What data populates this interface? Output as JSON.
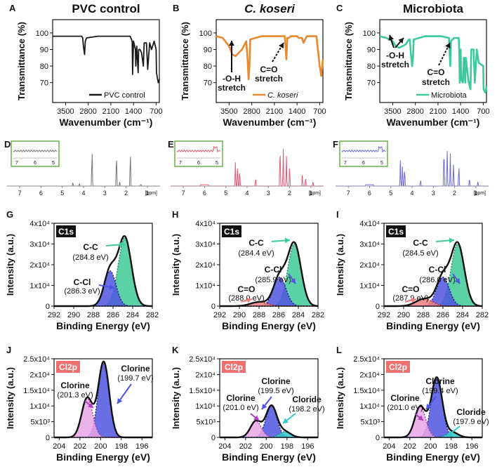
{
  "figure": {
    "colors": {
      "black": "#1a1a1a",
      "orange": "#e8892f",
      "teal": "#3cc9a0",
      "nmr_gray": "#777777",
      "nmr_red": "#e05a74",
      "nmr_blue": "#6a6ad8",
      "inset_green": "#6ab04c",
      "xps_green": "#3ec996",
      "xps_blue": "#4f55e0",
      "xps_red": "#f08080",
      "xps_pink": "#e9a6e6",
      "xps_cyan": "#33c8c8",
      "xps_label_black": "#111111",
      "xps_label_red": "#f07070"
    }
  },
  "ftir": {
    "ylabel": "Transmittance (%)",
    "xlabel": "Wavenumber (cm⁻¹)",
    "xticks": [
      "3500",
      "2800",
      "2100",
      "1400",
      "700"
    ],
    "yticks": [
      "70",
      "80",
      "90",
      "100"
    ],
    "panels": [
      {
        "letter": "A",
        "title": "PVC control",
        "legend": "PVC control",
        "color": "black",
        "annotations": []
      },
      {
        "letter": "B",
        "title": "C. koseri",
        "legend": "C. koseri",
        "color": "orange",
        "annotations": [
          "-O-H stretch",
          "C=O stretch"
        ]
      },
      {
        "letter": "C",
        "title": "Microbiota",
        "legend": "Microbiota",
        "color": "teal",
        "annotations": [
          "-O-H stretch",
          "C=O stretch"
        ]
      }
    ]
  },
  "nmr": {
    "unit": "[ppm]",
    "ticks": [
      "7",
      "6",
      "5",
      "4",
      "3",
      "2",
      "1"
    ],
    "inset_ticks": [
      "7",
      "6",
      "5"
    ],
    "panels": [
      {
        "letter": "D",
        "color": "nmr_gray"
      },
      {
        "letter": "E",
        "color": "nmr_red"
      },
      {
        "letter": "F",
        "color": "nmr_blue"
      }
    ]
  },
  "c1s": {
    "tag": "C1s",
    "ylabel": "Intensity (a.u.)",
    "xlabel": "Binding Energy (eV)",
    "xticks": [
      "292",
      "290",
      "288",
      "286",
      "284",
      "282"
    ],
    "yticks": [
      "0",
      "1x10⁴",
      "2x10⁴",
      "3x10⁴",
      "4x10⁴"
    ],
    "panels": [
      {
        "letter": "G",
        "labels": [
          {
            "name": "C-C",
            "value": "(284.8 eV)"
          },
          {
            "name": "C-Cl",
            "value": "(286.3 eV)"
          }
        ]
      },
      {
        "letter": "H",
        "labels": [
          {
            "name": "C-C",
            "value": "(284.4 eV)"
          },
          {
            "name": "C-Cl",
            "value": "(285.9 eV)"
          },
          {
            "name": "C=O",
            "value": "(288.0 eV)"
          }
        ]
      },
      {
        "letter": "I",
        "labels": [
          {
            "name": "C-C",
            "value": "(284.5 eV)"
          },
          {
            "name": "C-Cl",
            "value": "(286.0 eV)"
          },
          {
            "name": "C=O",
            "value": "(287.9 eV)"
          }
        ]
      }
    ]
  },
  "cl2p": {
    "tag": "Cl2p",
    "ylabel": "Intensity (a.u.)",
    "xlabel": "Binding Energy (eV)",
    "xticks": [
      "204",
      "202",
      "200",
      "198",
      "196"
    ],
    "yticks": [
      "0",
      "5x10³",
      "1x10⁴",
      "1.5x10⁴",
      "2x10⁴",
      "2.5x10⁴"
    ],
    "panels": [
      {
        "letter": "J",
        "labels": [
          {
            "name": "Clorine",
            "value": "(199.7 eV)"
          },
          {
            "name": "Clorine",
            "value": "(201.3 eV)"
          }
        ]
      },
      {
        "letter": "K",
        "labels": [
          {
            "name": "Clorine",
            "value": "(199.5 eV)"
          },
          {
            "name": "Clorine",
            "value": "(201.0 eV)"
          },
          {
            "name": "Cloride",
            "value": "(198.2 eV)"
          }
        ]
      },
      {
        "letter": "L",
        "labels": [
          {
            "name": "Clorine",
            "value": "(199.4 eV)"
          },
          {
            "name": "Clorine",
            "value": "(201.0 eV)"
          },
          {
            "name": "Cloride",
            "value": "(197.9 eV)"
          }
        ]
      }
    ]
  },
  "chart_data": [
    {
      "panel": "A",
      "type": "line",
      "title": "PVC control",
      "xlabel": "Wavenumber (cm⁻¹)",
      "ylabel": "Transmittance (%)",
      "xlim": [
        3900,
        600
      ],
      "ylim": [
        58,
        108
      ],
      "series": [
        {
          "name": "PVC control",
          "x": [
            3900,
            3500,
            3000,
            2970,
            2950,
            2912,
            2890,
            2850,
            2500,
            2000,
            1500,
            1440,
            1427,
            1400,
            1340,
            1330,
            1300,
            1255,
            1240,
            1200,
            1150,
            1095,
            1070,
            1000,
            960,
            900,
            840,
            760,
            700,
            690,
            635,
            600
          ],
          "y": [
            98,
            98,
            98,
            97,
            92,
            87,
            95,
            97,
            98,
            98,
            98,
            95,
            75,
            95,
            90,
            80,
            92,
            76,
            90,
            90,
            88,
            80,
            94,
            94,
            78,
            94,
            90,
            95,
            90,
            76,
            70,
            72
          ]
        }
      ]
    },
    {
      "panel": "B",
      "type": "line",
      "title": "C. koseri",
      "xlabel": "Wavenumber (cm⁻¹)",
      "ylabel": "Transmittance (%)",
      "xlim": [
        3900,
        600
      ],
      "ylim": [
        58,
        108
      ],
      "series": [
        {
          "name": "C. koseri",
          "x": [
            3900,
            3700,
            3500,
            3400,
            3300,
            3100,
            2970,
            2930,
            2900,
            2870,
            2850,
            2500,
            2000,
            1780,
            1750,
            1730,
            1700,
            1650,
            1600,
            1500,
            1400,
            1350,
            1250,
            1200,
            1100,
            1000,
            900,
            800,
            700,
            650,
            600
          ],
          "y": [
            98,
            97,
            92,
            87,
            86,
            90,
            95,
            84,
            72,
            80,
            96,
            98,
            98,
            98,
            90,
            84,
            97,
            97,
            98,
            98,
            98,
            97,
            97,
            94,
            98,
            98,
            98,
            98,
            80,
            74,
            84
          ]
        }
      ]
    },
    {
      "panel": "C",
      "type": "line",
      "title": "Microbiota",
      "xlabel": "Wavenumber (cm⁻¹)",
      "ylabel": "Transmittance (%)",
      "xlim": [
        3900,
        600
      ],
      "ylim": [
        58,
        108
      ],
      "series": [
        {
          "name": "Microbiota",
          "x": [
            3900,
            3700,
            3500,
            3400,
            3300,
            3100,
            3000,
            2970,
            2940,
            2900,
            2870,
            2850,
            2500,
            2000,
            1760,
            1735,
            1720,
            1700,
            1600,
            1460,
            1440,
            1427,
            1400,
            1380,
            1330,
            1300,
            1255,
            1240,
            1150,
            1095,
            1070,
            1000,
            960,
            900,
            840,
            700,
            690,
            635,
            600
          ],
          "y": [
            98,
            97,
            95,
            92,
            91,
            93,
            96,
            96,
            88,
            80,
            86,
            96,
            98,
            98,
            97,
            86,
            80,
            95,
            97,
            97,
            88,
            70,
            90,
            72,
            70,
            85,
            70,
            85,
            70,
            66,
            90,
            90,
            70,
            90,
            82,
            80,
            66,
            64,
            68
          ]
        }
      ]
    },
    {
      "panel": "G",
      "type": "area",
      "xlabel": "Binding Energy (eV)",
      "ylabel": "Intensity (a.u.)",
      "xlim": [
        292,
        282
      ],
      "ylim": [
        0,
        40000
      ],
      "peaks": [
        {
          "name": "C-C",
          "center": 284.8,
          "height": 33000,
          "width": 0.95
        },
        {
          "name": "C-Cl",
          "center": 286.3,
          "height": 17000,
          "width": 0.85
        }
      ]
    },
    {
      "panel": "H",
      "type": "area",
      "xlabel": "Binding Energy (eV)",
      "ylabel": "Intensity (a.u.)",
      "xlim": [
        292,
        282
      ],
      "ylim": [
        0,
        40000
      ],
      "peaks": [
        {
          "name": "C-C",
          "center": 284.4,
          "height": 30000,
          "width": 0.95
        },
        {
          "name": "C-Cl",
          "center": 285.9,
          "height": 14000,
          "width": 0.9
        },
        {
          "name": "C=O",
          "center": 288.0,
          "height": 2000,
          "width": 1.2
        }
      ]
    },
    {
      "panel": "I",
      "type": "area",
      "xlabel": "Binding Energy (eV)",
      "ylabel": "Intensity (a.u.)",
      "xlim": [
        292,
        282
      ],
      "ylim": [
        0,
        40000
      ],
      "peaks": [
        {
          "name": "C-C",
          "center": 284.5,
          "height": 30000,
          "width": 0.95
        },
        {
          "name": "C-Cl",
          "center": 286.0,
          "height": 14000,
          "width": 0.9
        },
        {
          "name": "C=O",
          "center": 287.9,
          "height": 3500,
          "width": 1.2
        }
      ]
    },
    {
      "panel": "J",
      "type": "area",
      "xlabel": "Binding Energy (eV)",
      "ylabel": "Intensity (a.u.)",
      "xlim": [
        204.5,
        195
      ],
      "ylim": [
        0,
        25000
      ],
      "peaks": [
        {
          "name": "Clorine",
          "center": 199.7,
          "height": 24000,
          "width": 0.75
        },
        {
          "name": "Clorine",
          "center": 201.3,
          "height": 12500,
          "width": 0.75
        }
      ]
    },
    {
      "panel": "K",
      "type": "area",
      "xlabel": "Binding Energy (eV)",
      "ylabel": "Intensity (a.u.)",
      "xlim": [
        204.5,
        195
      ],
      "ylim": [
        0,
        25000
      ],
      "peaks": [
        {
          "name": "Clorine",
          "center": 199.5,
          "height": 10000,
          "width": 0.75
        },
        {
          "name": "Clorine",
          "center": 201.0,
          "height": 5200,
          "width": 0.75
        },
        {
          "name": "Cloride",
          "center": 198.2,
          "height": 1800,
          "width": 0.8
        }
      ]
    },
    {
      "panel": "L",
      "type": "area",
      "xlabel": "Binding Energy (eV)",
      "ylabel": "Intensity (a.u.)",
      "xlim": [
        204.5,
        195
      ],
      "ylim": [
        0,
        25000
      ],
      "peaks": [
        {
          "name": "Clorine",
          "center": 199.4,
          "height": 19000,
          "width": 0.75
        },
        {
          "name": "Clorine",
          "center": 201.0,
          "height": 9800,
          "width": 0.75
        },
        {
          "name": "Cloride",
          "center": 197.9,
          "height": 1600,
          "width": 0.8
        }
      ]
    }
  ]
}
